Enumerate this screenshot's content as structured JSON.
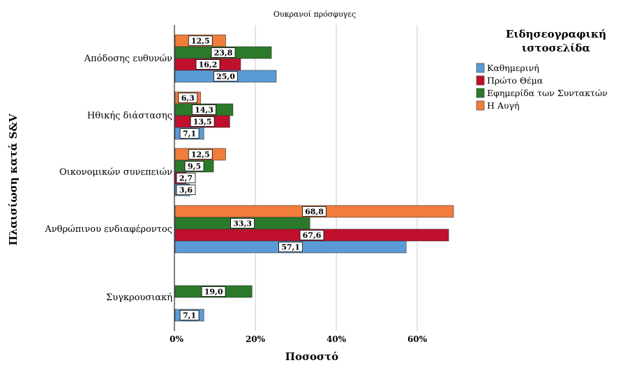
{
  "chart_data": {
    "type": "bar",
    "orientation": "horizontal",
    "title": "Ουκρανοί πρόσφυγες",
    "xlabel": "Ποσοστό",
    "ylabel": "Πλαισίωση κατά S&V",
    "xlim": [
      0,
      0.7
    ],
    "xticks": [
      0,
      0.2,
      0.4,
      0.6
    ],
    "xtick_labels": [
      "0%",
      "20%",
      "40%",
      "60%"
    ],
    "grid": "vertical",
    "categories": [
      "Απόδοσης ευθυνών",
      "Ηθικής διάστασης",
      "Οικονομικών συνεπειών",
      "Ανθρώπινου ενδιαφέροντος",
      "Συγκρουσιακή"
    ],
    "legend": {
      "title_lines": [
        "Ειδησεογραφική",
        "ιστοσελίδα"
      ],
      "position": "right"
    },
    "series": [
      {
        "name": "Καθημερινή",
        "color": "#5b9bd5",
        "values": [
          0.25,
          0.071,
          0.036,
          0.571,
          0.071
        ],
        "labels": [
          "25,0",
          "7,1",
          "3,6",
          "57,1",
          "7,1"
        ]
      },
      {
        "name": "Πρώτο Θέμα",
        "color": "#c0102e",
        "values": [
          0.162,
          0.135,
          0.027,
          0.676,
          null
        ],
        "labels": [
          "16,2",
          "13,5",
          "2,7",
          "67,6",
          ""
        ]
      },
      {
        "name": "Εφημερίδα των Συντακτών",
        "color": "#2b7a2b",
        "values": [
          0.238,
          0.143,
          0.095,
          0.333,
          0.19
        ],
        "labels": [
          "23,8",
          "14,3",
          "9,5",
          "33,3",
          "19,0"
        ]
      },
      {
        "name": "Η Αυγή",
        "color": "#f07d3a",
        "values": [
          0.125,
          0.063,
          0.125,
          0.688,
          null
        ],
        "labels": [
          "12,5",
          "6,3",
          "12,5",
          "68,8",
          ""
        ]
      }
    ]
  }
}
